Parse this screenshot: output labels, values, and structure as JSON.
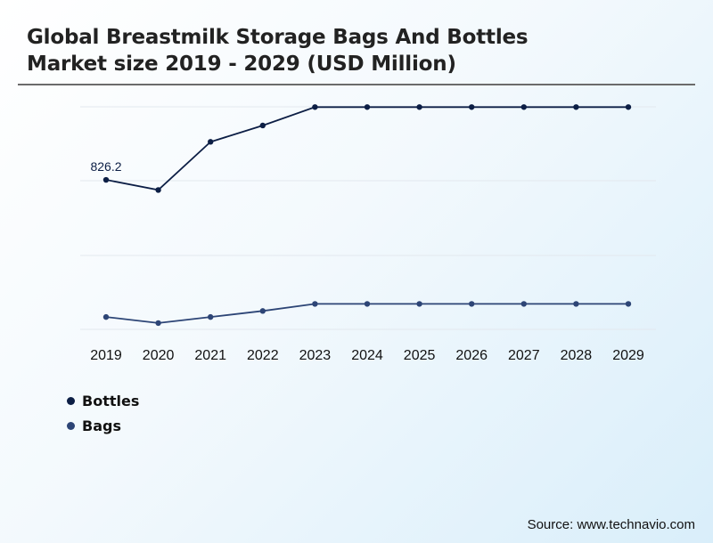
{
  "title_line1": "Global Breastmilk Storage Bags And Bottles",
  "title_line2": "Market size 2019 - 2029 (USD Million)",
  "source": "Source: www.technavio.com",
  "chart_data": {
    "type": "line",
    "title": "Global Breastmilk Storage Bags And Bottles Market size 2019 - 2029 (USD Million)",
    "xlabel": "",
    "ylabel": "",
    "categories": [
      "2019",
      "2020",
      "2021",
      "2022",
      "2023",
      "2024",
      "2025",
      "2026",
      "2027",
      "2028",
      "2029"
    ],
    "series": [
      {
        "name": "Bottles",
        "color": "#0c1e45",
        "values": [
          826.2,
          786,
          977,
          1042,
          1115,
          1115,
          1115,
          1115,
          1115,
          1115,
          1115
        ],
        "data_labels": {
          "0": "826.2"
        }
      },
      {
        "name": "Bags",
        "color": "#2d4576",
        "values": [
          282,
          258,
          282,
          306,
          334,
          334,
          334,
          334,
          334,
          334,
          334
        ]
      }
    ],
    "ylim": [
      233,
      1116
    ],
    "grid": true,
    "legend": "bottom-left"
  }
}
